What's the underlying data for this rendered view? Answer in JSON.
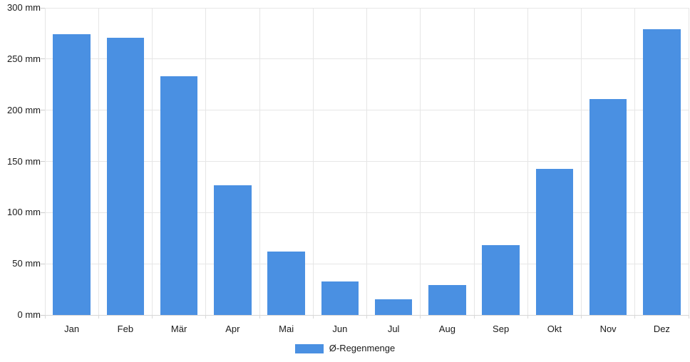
{
  "chart_data": {
    "type": "bar",
    "title": "",
    "categories": [
      "Jan",
      "Feb",
      "Mär",
      "Apr",
      "Mai",
      "Jun",
      "Jul",
      "Aug",
      "Sep",
      "Okt",
      "Nov",
      "Dez"
    ],
    "series": [
      {
        "name": "Ø-Regenmenge",
        "values": [
          274,
          271,
          233,
          127,
          62,
          33,
          15,
          29,
          68,
          143,
          211,
          279
        ]
      }
    ],
    "unit": "mm",
    "ylim": [
      0,
      300
    ],
    "ytick_step": 50,
    "yticks": [
      "0 mm",
      "50 mm",
      "100 mm",
      "150 mm",
      "200 mm",
      "250 mm",
      "300 mm"
    ],
    "xlabel": "",
    "ylabel": "",
    "grid": true,
    "legend_position": "bottom",
    "colors": {
      "bar": "#4a90e2",
      "gridline": "#e6e6e6",
      "axis_line": "#d6d6d6",
      "tick": "#cccccc",
      "text": "#1a1a1a",
      "background": "#ffffff"
    }
  }
}
